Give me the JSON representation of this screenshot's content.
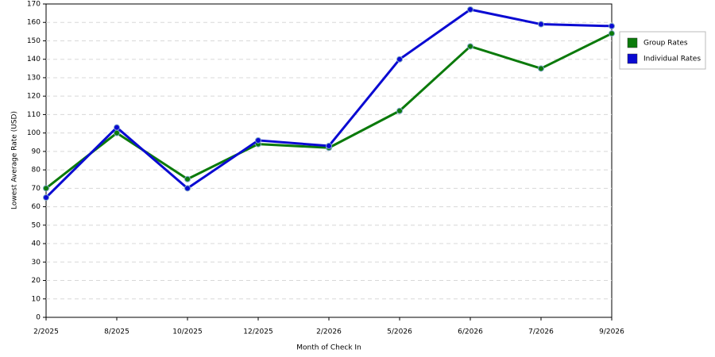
{
  "chart_data": {
    "type": "line",
    "x_label": "Month of Check In",
    "y_label": "Lowest Average Rate (USD)",
    "categories": [
      "2/2025",
      "8/2025",
      "10/2025",
      "12/2025",
      "2/2026",
      "5/2026",
      "6/2026",
      "7/2026",
      "9/2026"
    ],
    "series": [
      {
        "name": "Group Rates",
        "color": "#0b7a0b",
        "values": [
          70,
          100,
          75,
          94,
          92,
          112,
          147,
          135,
          154
        ]
      },
      {
        "name": "Individual Rates",
        "color": "#0a0ad2",
        "values": [
          65,
          103,
          70,
          96,
          93,
          140,
          167,
          159,
          158
        ]
      }
    ],
    "ylim": [
      0,
      170
    ],
    "yticks": [
      0,
      10,
      20,
      30,
      40,
      50,
      60,
      70,
      80,
      90,
      100,
      110,
      120,
      130,
      140,
      150,
      160,
      170
    ],
    "grid": true,
    "legend": "right"
  }
}
